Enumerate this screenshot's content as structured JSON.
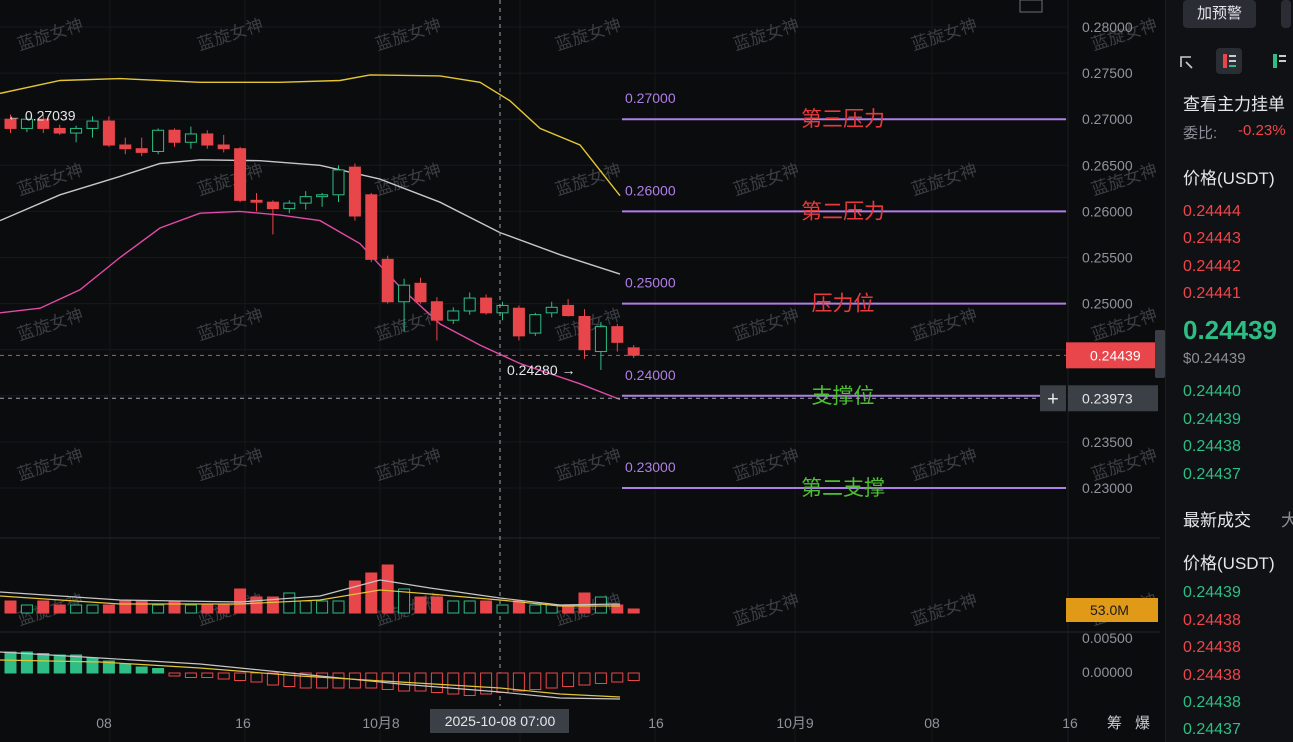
{
  "chart_data": {
    "type": "candlestick",
    "y_range": [
      0.2265,
      0.2815
    ],
    "y_ticks": [
      "0.28000",
      "0.27500",
      "0.27000",
      "0.26500",
      "0.26000",
      "0.25500",
      "0.25000",
      "0.24500",
      "0.24000",
      "0.23500",
      "0.23000"
    ],
    "x_ticks": [
      "08",
      "16",
      "10月8",
      "16",
      "10月9",
      "08",
      "16"
    ],
    "crosshair_label": "2025-10-08 07:00",
    "current_price_label": "0.24439",
    "crosshair_price_label": "0.23973",
    "high_marker": "← 0.27039",
    "low_marker": "0.24280 →",
    "candles": [
      [
        0.27,
        0.2705,
        0.2685,
        0.269
      ],
      [
        0.269,
        0.2702,
        0.2686,
        0.27
      ],
      [
        0.27,
        0.2705,
        0.2685,
        0.269
      ],
      [
        0.269,
        0.2694,
        0.2683,
        0.2685
      ],
      [
        0.2685,
        0.2693,
        0.2675,
        0.269
      ],
      [
        0.269,
        0.2703,
        0.268,
        0.2698
      ],
      [
        0.2698,
        0.2703,
        0.267,
        0.2672
      ],
      [
        0.2672,
        0.268,
        0.2662,
        0.2668
      ],
      [
        0.2668,
        0.268,
        0.266,
        0.2664
      ],
      [
        0.2665,
        0.269,
        0.2662,
        0.2688
      ],
      [
        0.2688,
        0.269,
        0.267,
        0.2675
      ],
      [
        0.2675,
        0.2692,
        0.2668,
        0.2684
      ],
      [
        0.2684,
        0.2688,
        0.2668,
        0.2672
      ],
      [
        0.2672,
        0.2683,
        0.2664,
        0.2668
      ],
      [
        0.2668,
        0.267,
        0.261,
        0.2612
      ],
      [
        0.2612,
        0.262,
        0.26,
        0.261
      ],
      [
        0.261,
        0.2612,
        0.2575,
        0.2603
      ],
      [
        0.2603,
        0.2612,
        0.2598,
        0.2609
      ],
      [
        0.2609,
        0.2622,
        0.2602,
        0.2616
      ],
      [
        0.2616,
        0.262,
        0.2605,
        0.2618
      ],
      [
        0.2618,
        0.265,
        0.261,
        0.2645
      ],
      [
        0.2648,
        0.2652,
        0.259,
        0.2595
      ],
      [
        0.2618,
        0.262,
        0.2545,
        0.2548
      ],
      [
        0.2548,
        0.2552,
        0.25,
        0.2502
      ],
      [
        0.2502,
        0.2527,
        0.247,
        0.252
      ],
      [
        0.2522,
        0.2528,
        0.25,
        0.2502
      ],
      [
        0.2502,
        0.2507,
        0.246,
        0.2482
      ],
      [
        0.2482,
        0.2496,
        0.2478,
        0.2492
      ],
      [
        0.2492,
        0.2512,
        0.2488,
        0.2506
      ],
      [
        0.2506,
        0.251,
        0.2488,
        0.249
      ],
      [
        0.249,
        0.2502,
        0.2482,
        0.2498
      ],
      [
        0.2495,
        0.2498,
        0.246,
        0.2465
      ],
      [
        0.2468,
        0.249,
        0.2465,
        0.2488
      ],
      [
        0.249,
        0.2502,
        0.2485,
        0.2496
      ],
      [
        0.2498,
        0.2505,
        0.2486,
        0.2487
      ],
      [
        0.2486,
        0.2494,
        0.244,
        0.245
      ],
      [
        0.2448,
        0.248,
        0.2428,
        0.2475
      ],
      [
        0.2475,
        0.2478,
        0.2448,
        0.2458
      ],
      [
        0.2452,
        0.2455,
        0.2441,
        0.2444
      ]
    ],
    "ma_white": [
      [
        0,
        0.259
      ],
      [
        60,
        0.2618
      ],
      [
        120,
        0.2638
      ],
      [
        160,
        0.2652
      ],
      [
        200,
        0.2656
      ],
      [
        260,
        0.2655
      ],
      [
        320,
        0.265
      ],
      [
        380,
        0.2635
      ],
      [
        440,
        0.261
      ],
      [
        500,
        0.2577
      ],
      [
        560,
        0.2553
      ],
      [
        620,
        0.2532
      ]
    ],
    "band_upper": [
      [
        0,
        0.2728
      ],
      [
        60,
        0.2742
      ],
      [
        120,
        0.2744
      ],
      [
        200,
        0.274
      ],
      [
        280,
        0.274
      ],
      [
        340,
        0.2742
      ],
      [
        370,
        0.2748
      ],
      [
        440,
        0.2747
      ],
      [
        480,
        0.274
      ],
      [
        510,
        0.272
      ],
      [
        540,
        0.269
      ],
      [
        580,
        0.2672
      ],
      [
        620,
        0.2617
      ]
    ],
    "band_lower": [
      [
        0,
        0.249
      ],
      [
        40,
        0.2495
      ],
      [
        80,
        0.2515
      ],
      [
        120,
        0.255
      ],
      [
        160,
        0.2582
      ],
      [
        200,
        0.2598
      ],
      [
        240,
        0.26
      ],
      [
        280,
        0.2596
      ],
      [
        320,
        0.259
      ],
      [
        360,
        0.2565
      ],
      [
        400,
        0.2518
      ],
      [
        440,
        0.2478
      ],
      [
        480,
        0.2455
      ],
      [
        520,
        0.2435
      ],
      [
        580,
        0.2413
      ],
      [
        620,
        0.2396
      ]
    ],
    "levels": [
      {
        "value": 0.27,
        "price_label": "0.27000",
        "name": "第三压力",
        "name_color": "#e83a3a"
      },
      {
        "value": 0.26,
        "price_label": "0.26000",
        "name": "第二压力",
        "name_color": "#e83a3a"
      },
      {
        "value": 0.25,
        "price_label": "0.25000",
        "name": "压力位",
        "name_color": "#e83a3a"
      },
      {
        "value": 0.24,
        "price_label": "0.24000",
        "name": "支撑位",
        "name_color": "#4cc030"
      },
      {
        "value": 0.23,
        "price_label": "0.23000",
        "name": "第二支撑",
        "name_color": "#4cc030"
      }
    ],
    "volume": [
      3,
      2,
      3,
      2,
      2,
      2,
      2,
      3,
      3,
      2,
      3,
      2,
      2,
      2,
      6,
      4,
      4,
      5,
      3,
      3,
      3,
      8,
      10,
      12,
      6,
      4,
      4,
      3,
      3,
      3,
      2,
      3,
      2,
      2,
      2,
      5,
      4,
      2,
      1
    ],
    "volume_label": "53.0M",
    "macd_ticks": [
      "0.00500",
      "0.00000"
    ],
    "colors": {
      "up": "#2ebd85",
      "down": "#e8464b",
      "ma_white": "#c7c7c7",
      "band_upper": "#e3c536",
      "band_lower": "#e14aa8",
      "level_line": "#b07ee8"
    },
    "watermark": "蓝旋女神"
  },
  "side": {
    "alert_button": "加预警",
    "view_orders": "查看主力挂单",
    "ratio_label": "委比:",
    "ratio_value": "-0.23%",
    "price_header": "价格(USDT)",
    "asks": [
      "0.24444",
      "0.24443",
      "0.24442",
      "0.24441"
    ],
    "last_price": "0.24439",
    "last_price_usd": "$0.24439",
    "bids": [
      "0.24440",
      "0.24439",
      "0.24438",
      "0.24437"
    ],
    "trades_header": "最新成交",
    "trades_tab2": "大",
    "trades_price_header": "价格(USDT)",
    "trades": [
      {
        "p": "0.24439",
        "c": "green"
      },
      {
        "p": "0.24438",
        "c": "red"
      },
      {
        "p": "0.24438",
        "c": "red"
      },
      {
        "p": "0.24438",
        "c": "red"
      },
      {
        "p": "0.24438",
        "c": "green"
      },
      {
        "p": "0.24437",
        "c": "green"
      }
    ],
    "bottom_labels": [
      "筹",
      "爆"
    ]
  }
}
